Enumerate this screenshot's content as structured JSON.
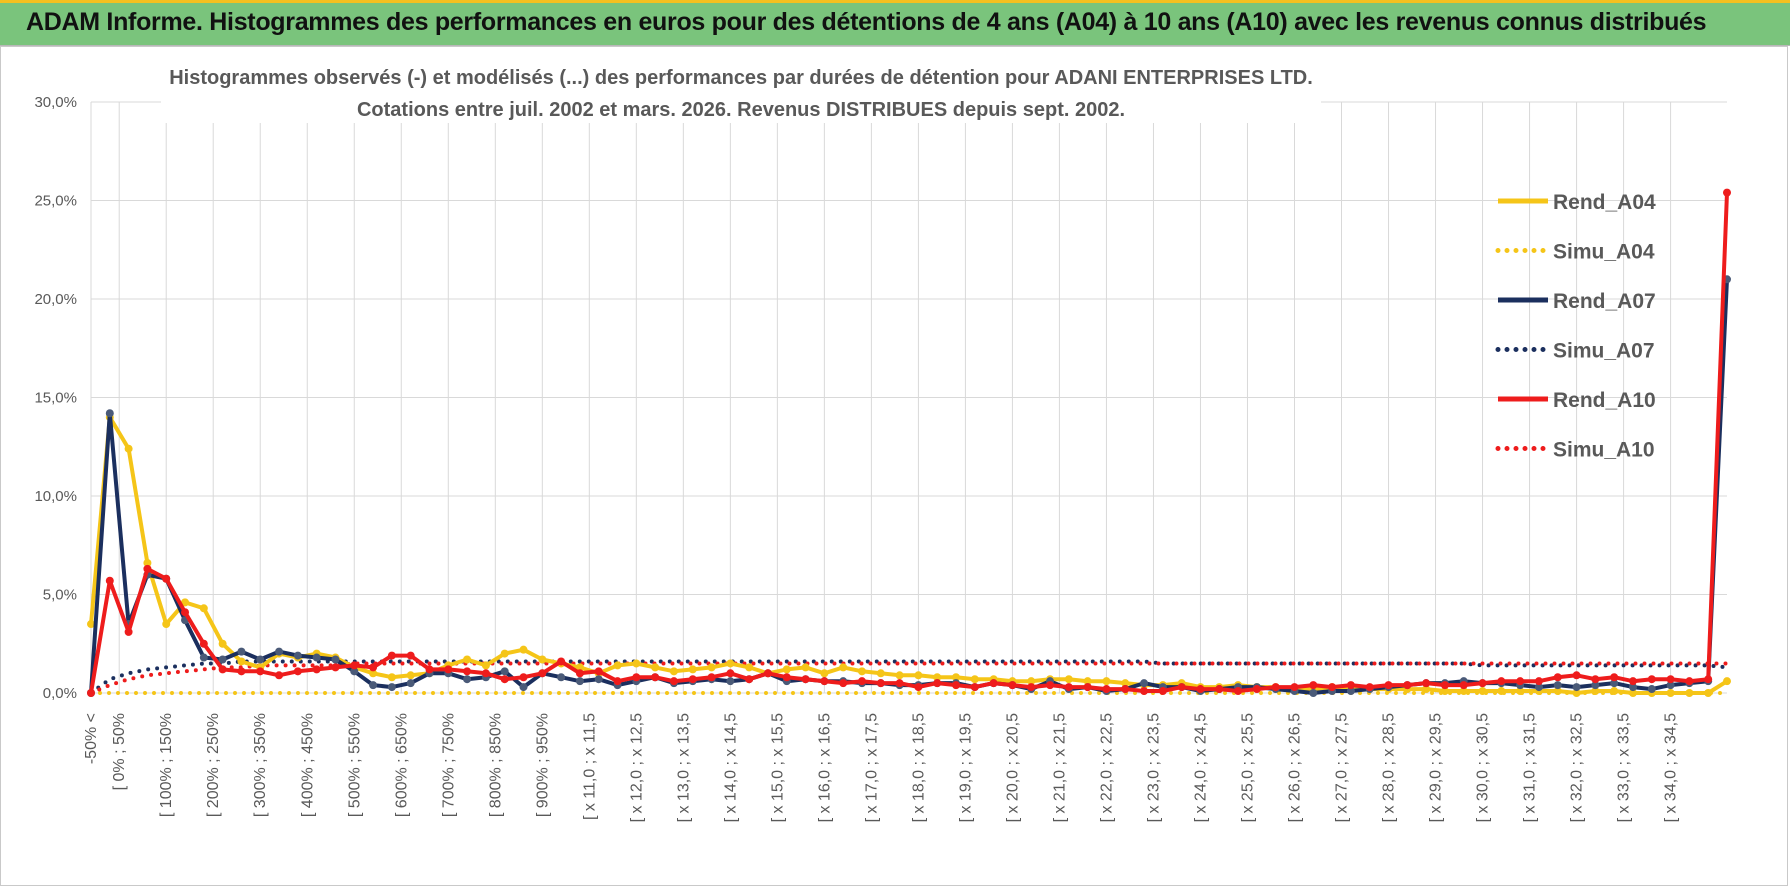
{
  "header": {
    "title": "ADAM Informe. Histogrammes des performances en euros pour des détentions de 4 ans (A04) à 10 ans (A10) avec les revenus connus distribués"
  },
  "chart_data": {
    "type": "line",
    "title_line1": "Histogrammes observés (-)  et modélisés (...)  des performances par durées de détention pour ADANI ENTERPRISES LTD.",
    "title_line2": "Cotations entre juil. 2002 et mars. 2026.  Revenus DISTRIBUES depuis sept. 2002.",
    "ylim": [
      0,
      30
    ],
    "yticks": [
      "0,0%",
      "5,0%",
      "10,0%",
      "15,0%",
      "20,0%",
      "25,0%",
      "30,0%"
    ],
    "grid": true,
    "legend_position": "right",
    "x_labels": [
      "-50% <",
      "[ 0% ; 50%",
      "[ 100% ; 150%",
      "[ 200% ; 250%",
      "[ 300% ; 350%",
      "[ 400% ; 450%",
      "[ 500% ; 550%",
      "[ 600% ; 650%",
      "[ 700% ; 750%",
      "[ 800% ; 850%",
      "[ 900% ; 950%",
      "[ x 11,0 ; x 11,5",
      "[ x 12,0 ; x 12,5",
      "[ x 13,0 ; x 13,5",
      "[ x 14,0 ; x 14,5",
      "[ x 15,0 ; x 15,5",
      "[ x 16,0 ; x 16,5",
      "[ x 17,0 ; x 17,5",
      "[ x 18,0 ; x 18,5",
      "[ x 19,0 ; x 19,5",
      "[ x 20,0 ; x 20,5",
      "[ x 21,0 ; x 21,5",
      "[ x 22,0 ; x 22,5",
      "[ x 23,0 ; x 23,5",
      "[ x 24,0 ; x 24,5",
      "[ x 25,0 ; x 25,5",
      "[ x 26,0 ; x 26,5",
      "[ x 27,0 ; x 27,5",
      "[ x 28,0 ; x 28,5",
      "[ x 29,0 ; x 29,5",
      "[ x 30,0 ; x 30,5",
      "[ x 31,0 ; x 31,5",
      "[ x 32,0 ; x 32,5",
      "[ x 33,0 ; x 33,5",
      "[ x 34,0 ; x 34,5"
    ],
    "point_count": 88,
    "series": [
      {
        "name": "Rend_A04",
        "color": "#f5c518",
        "style": "solid",
        "markers": true,
        "values": [
          3.5,
          14.0,
          12.4,
          6.6,
          3.5,
          4.6,
          4.3,
          2.5,
          1.6,
          1.3,
          2.0,
          1.8,
          2.0,
          1.8,
          1.3,
          1.0,
          0.8,
          0.9,
          1.0,
          1.4,
          1.7,
          1.4,
          2.0,
          2.2,
          1.7,
          1.5,
          1.3,
          1.0,
          1.4,
          1.5,
          1.3,
          1.1,
          1.2,
          1.3,
          1.5,
          1.3,
          1.0,
          1.2,
          1.3,
          1.0,
          1.3,
          1.1,
          1.0,
          0.9,
          0.9,
          0.8,
          0.8,
          0.7,
          0.7,
          0.6,
          0.6,
          0.7,
          0.7,
          0.6,
          0.6,
          0.5,
          0.4,
          0.4,
          0.5,
          0.3,
          0.3,
          0.4,
          0.3,
          0.3,
          0.2,
          0.2,
          0.3,
          0.3,
          0.2,
          0.2,
          0.2,
          0.2,
          0.1,
          0.1,
          0.1,
          0.1,
          0.1,
          0.1,
          0.1,
          0.0,
          0.1,
          0.1,
          0.0,
          0.0,
          0.0,
          0.0,
          0.0,
          0.6
        ]
      },
      {
        "name": "Simu_A04",
        "color": "#f5c518",
        "style": "dotted",
        "markers": false,
        "values": [
          0.0,
          0.0,
          0.0,
          0.0,
          0.0,
          0.0,
          0.0,
          0.0,
          0.0,
          0.0,
          0.0,
          0.0,
          0.0,
          0.0,
          0.0,
          0.0,
          0.0,
          0.0,
          0.0,
          0.0,
          0.0,
          0.0,
          0.0,
          0.0,
          0.0,
          0.0,
          0.0,
          0.0,
          0.0,
          0.0,
          0.0,
          0.0,
          0.0,
          0.0,
          0.0,
          0.0,
          0.0,
          0.0,
          0.0,
          0.0,
          0.0,
          0.0,
          0.0,
          0.0,
          0.0,
          0.0,
          0.0,
          0.0,
          0.0,
          0.0,
          0.0,
          0.0,
          0.0,
          0.0,
          0.0,
          0.0,
          0.0,
          0.0,
          0.0,
          0.0,
          0.0,
          0.0,
          0.0,
          0.0,
          0.0,
          0.0,
          0.0,
          0.0,
          0.0,
          0.0,
          0.0,
          0.0,
          0.0,
          0.0,
          0.0,
          0.0,
          0.0,
          0.0,
          0.0,
          0.0,
          0.0,
          0.0,
          0.0,
          0.0,
          0.0,
          0.0,
          0.0,
          0.0
        ]
      },
      {
        "name": "Rend_A07",
        "color": "#1b2f5e",
        "style": "solid",
        "markers": true,
        "values": [
          0.0,
          14.2,
          3.5,
          6.0,
          5.8,
          3.7,
          1.8,
          1.7,
          2.1,
          1.7,
          2.1,
          1.9,
          1.8,
          1.7,
          1.1,
          0.4,
          0.3,
          0.5,
          1.0,
          1.0,
          0.7,
          0.8,
          1.1,
          0.3,
          1.0,
          0.8,
          0.6,
          0.7,
          0.4,
          0.6,
          0.8,
          0.5,
          0.6,
          0.7,
          0.6,
          0.7,
          1.0,
          0.6,
          0.7,
          0.6,
          0.6,
          0.5,
          0.5,
          0.4,
          0.4,
          0.5,
          0.5,
          0.3,
          0.5,
          0.4,
          0.2,
          0.6,
          0.2,
          0.3,
          0.1,
          0.2,
          0.5,
          0.3,
          0.3,
          0.1,
          0.2,
          0.3,
          0.3,
          0.2,
          0.1,
          0.0,
          0.1,
          0.1,
          0.2,
          0.3,
          0.4,
          0.5,
          0.5,
          0.6,
          0.5,
          0.5,
          0.4,
          0.3,
          0.4,
          0.3,
          0.4,
          0.5,
          0.3,
          0.2,
          0.4,
          0.5,
          0.6,
          21.0
        ]
      },
      {
        "name": "Simu_A07",
        "color": "#1b2f5e",
        "style": "dotted",
        "markers": false,
        "values": [
          0.0,
          0.7,
          1.0,
          1.2,
          1.3,
          1.4,
          1.5,
          1.5,
          1.6,
          1.6,
          1.6,
          1.6,
          1.6,
          1.6,
          1.6,
          1.6,
          1.6,
          1.6,
          1.6,
          1.6,
          1.6,
          1.6,
          1.6,
          1.6,
          1.6,
          1.6,
          1.6,
          1.6,
          1.6,
          1.6,
          1.6,
          1.6,
          1.6,
          1.6,
          1.6,
          1.6,
          1.6,
          1.6,
          1.6,
          1.6,
          1.6,
          1.6,
          1.6,
          1.6,
          1.6,
          1.6,
          1.6,
          1.6,
          1.6,
          1.6,
          1.6,
          1.6,
          1.6,
          1.6,
          1.6,
          1.6,
          1.6,
          1.5,
          1.5,
          1.5,
          1.5,
          1.5,
          1.5,
          1.5,
          1.5,
          1.5,
          1.5,
          1.5,
          1.5,
          1.5,
          1.5,
          1.5,
          1.5,
          1.5,
          1.4,
          1.4,
          1.4,
          1.4,
          1.4,
          1.4,
          1.4,
          1.4,
          1.4,
          1.4,
          1.4,
          1.4,
          1.4,
          1.3
        ]
      },
      {
        "name": "Rend_A10",
        "color": "#ee1c1c",
        "style": "solid",
        "markers": true,
        "values": [
          0.0,
          5.7,
          3.1,
          6.3,
          5.8,
          4.1,
          2.5,
          1.2,
          1.1,
          1.1,
          0.9,
          1.1,
          1.2,
          1.3,
          1.4,
          1.3,
          1.9,
          1.9,
          1.2,
          1.2,
          1.1,
          1.0,
          0.7,
          0.8,
          1.0,
          1.6,
          1.0,
          1.1,
          0.6,
          0.8,
          0.8,
          0.6,
          0.7,
          0.8,
          1.0,
          0.7,
          1.0,
          0.8,
          0.7,
          0.6,
          0.5,
          0.6,
          0.5,
          0.5,
          0.3,
          0.5,
          0.4,
          0.3,
          0.5,
          0.4,
          0.3,
          0.4,
          0.3,
          0.3,
          0.2,
          0.2,
          0.1,
          0.1,
          0.3,
          0.2,
          0.2,
          0.1,
          0.2,
          0.3,
          0.3,
          0.4,
          0.3,
          0.4,
          0.3,
          0.4,
          0.4,
          0.5,
          0.4,
          0.4,
          0.5,
          0.6,
          0.6,
          0.6,
          0.8,
          0.9,
          0.7,
          0.8,
          0.6,
          0.7,
          0.7,
          0.6,
          0.7,
          25.4
        ]
      },
      {
        "name": "Simu_A10",
        "color": "#ee1c1c",
        "style": "dotted",
        "markers": false,
        "values": [
          0.0,
          0.4,
          0.7,
          0.9,
          1.0,
          1.1,
          1.2,
          1.3,
          1.3,
          1.4,
          1.4,
          1.4,
          1.4,
          1.4,
          1.5,
          1.5,
          1.5,
          1.5,
          1.5,
          1.5,
          1.5,
          1.5,
          1.5,
          1.5,
          1.5,
          1.5,
          1.5,
          1.5,
          1.5,
          1.5,
          1.5,
          1.5,
          1.5,
          1.5,
          1.5,
          1.5,
          1.5,
          1.5,
          1.5,
          1.5,
          1.5,
          1.5,
          1.5,
          1.5,
          1.5,
          1.5,
          1.5,
          1.5,
          1.5,
          1.5,
          1.5,
          1.5,
          1.5,
          1.5,
          1.5,
          1.5,
          1.5,
          1.5,
          1.5,
          1.5,
          1.5,
          1.5,
          1.5,
          1.5,
          1.5,
          1.5,
          1.5,
          1.5,
          1.5,
          1.5,
          1.5,
          1.5,
          1.5,
          1.5,
          1.5,
          1.5,
          1.5,
          1.5,
          1.5,
          1.5,
          1.5,
          1.5,
          1.5,
          1.5,
          1.5,
          1.5,
          1.5,
          1.5
        ]
      }
    ]
  }
}
